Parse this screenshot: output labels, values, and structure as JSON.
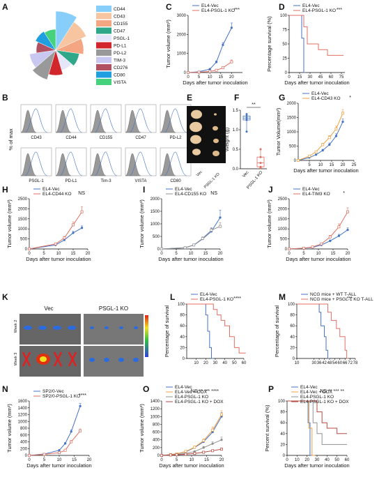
{
  "colors": {
    "blue": "#4472c4",
    "red": "#e06f63",
    "orange": "#f0a040",
    "gray": "#909090",
    "darkred": "#b8483f",
    "photo": "#e9e9e9"
  },
  "panels": {
    "A": {
      "label": "A",
      "legend": [
        "CD44",
        "CD43",
        "CD155",
        "CD47",
        "PSGL-1",
        "PD-L1",
        "PD-L2",
        "TIM-3",
        "CD276",
        "CD80",
        "VISTA"
      ],
      "colors": [
        "#87cefa",
        "#f7c59f",
        "#f4a582",
        "#2fa88a",
        "#e6e6fa",
        "#d1262c",
        "#999999",
        "#c8c8f0",
        "#b05060",
        "#1f9fdf",
        "#46d17d"
      ]
    },
    "B": {
      "label": "B",
      "ylabel": "% of max",
      "markers": [
        "CD43",
        "CD44",
        "CD155",
        "CD47",
        "PD-L2",
        "PSGL-1",
        "PD-L1",
        "Tim-3",
        "VISTA",
        "CD80"
      ]
    },
    "E": {
      "label": "E",
      "groups": [
        "Vec",
        "PSGL-1 KO"
      ]
    },
    "F": {
      "label": "F"
    },
    "K": {
      "label": "K",
      "groups": [
        "Vec",
        "PSGL-1 KO"
      ],
      "rows": [
        "Week 2",
        "Week 3"
      ]
    }
  },
  "chart_data": [
    {
      "panel": "C",
      "type": "line",
      "xlabel": "Days after tumor inoculation",
      "ylabel": "Tumor volume (mm³)",
      "xlim": [
        0,
        25
      ],
      "ylim": [
        0,
        3000
      ],
      "xticks": [
        0,
        5,
        10,
        15,
        20
      ],
      "yticks": [
        0,
        1000,
        2000,
        3000
      ],
      "sig": "***",
      "series": [
        {
          "name": "EL4-Vec",
          "color": "#4472c4",
          "x": [
            0,
            5,
            10,
            13,
            16,
            20
          ],
          "y": [
            0,
            40,
            180,
            550,
            1450,
            2350
          ],
          "err": [
            0,
            10,
            30,
            60,
            120,
            250
          ]
        },
        {
          "name": "EL4-PSGL-1 KO",
          "color": "#e06f63",
          "x": [
            0,
            5,
            10,
            13,
            16,
            20
          ],
          "y": [
            0,
            20,
            60,
            120,
            250,
            560
          ],
          "err": [
            0,
            5,
            10,
            20,
            40,
            100
          ]
        }
      ]
    },
    {
      "panel": "D",
      "type": "survival",
      "xlabel": "Days after tumor inoculation",
      "ylabel": "Percentage survival (%)",
      "xlim": [
        0,
        80
      ],
      "ylim": [
        0,
        100
      ],
      "xticks": [
        0,
        15,
        30,
        45,
        60,
        75
      ],
      "yticks": [
        0,
        25,
        50,
        75,
        100
      ],
      "sig": "***",
      "series": [
        {
          "name": "EL4-Vec",
          "color": "#4472c4",
          "x": [
            0,
            18,
            18,
            21,
            21,
            23
          ],
          "y": [
            100,
            100,
            60,
            60,
            0,
            0
          ]
        },
        {
          "name": "EL4-PSGL-1 KO",
          "color": "#e06f63",
          "x": [
            0,
            21,
            21,
            26,
            26,
            42,
            42,
            55,
            55,
            78
          ],
          "y": [
            100,
            100,
            80,
            80,
            50,
            50,
            40,
            40,
            30,
            30
          ]
        }
      ]
    },
    {
      "panel": "F",
      "type": "box",
      "xlabel": "",
      "ylabel": "Weight (g)",
      "ylim": [
        0,
        1.5
      ],
      "yticks": [
        0.0,
        0.5,
        1.0,
        1.5
      ],
      "categories": [
        "Vec",
        "PSGL-1 KO"
      ],
      "sig": "**",
      "series": [
        {
          "name": "Vec",
          "color": "#4472c4",
          "values": [
            1.3,
            1.35,
            1.4,
            1.25,
            0.95
          ]
        },
        {
          "name": "PSGL-1 KO",
          "color": "#e06f63",
          "values": [
            0.3,
            0.15,
            0.02,
            0.5,
            0.05
          ]
        }
      ]
    },
    {
      "panel": "G",
      "type": "line",
      "xlabel": "Days after tumor inoculation",
      "ylabel": "Tumor Volume(mm³)",
      "xlim": [
        0,
        25
      ],
      "ylim": [
        0,
        2000
      ],
      "xticks": [
        5,
        10,
        15,
        20,
        25
      ],
      "yticks": [
        0,
        500,
        1000,
        1500,
        2000
      ],
      "sig": "*",
      "series": [
        {
          "name": "EL4-Vec",
          "color": "#4472c4",
          "x": [
            0,
            5,
            8,
            11,
            14,
            17,
            20
          ],
          "y": [
            0,
            100,
            200,
            350,
            550,
            850,
            1350
          ],
          "err": [
            0,
            15,
            25,
            40,
            60,
            80,
            100
          ]
        },
        {
          "name": "EL4-CD43 KO",
          "color": "#f0a040",
          "x": [
            0,
            5,
            8,
            11,
            14,
            17,
            20
          ],
          "y": [
            0,
            150,
            300,
            550,
            800,
            1100,
            1650
          ],
          "err": [
            0,
            20,
            30,
            50,
            70,
            100,
            130
          ]
        }
      ]
    },
    {
      "panel": "H",
      "type": "line",
      "xlabel": "Days after tumor inoculation",
      "ylabel": "Tumor volume (mm³)",
      "xlim": [
        0,
        20
      ],
      "ylim": [
        0,
        2500
      ],
      "xticks": [
        0,
        5,
        10,
        15,
        20
      ],
      "yticks": [
        0,
        500,
        1000,
        1500,
        2000,
        2500
      ],
      "sig": "NS",
      "series": [
        {
          "name": "EL4-Vec",
          "color": "#4472c4",
          "x": [
            0,
            9,
            12,
            15,
            18
          ],
          "y": [
            0,
            200,
            450,
            800,
            1050
          ],
          "err": [
            0,
            30,
            50,
            80,
            100
          ]
        },
        {
          "name": "EL4-CD44 KO",
          "color": "#e06f63",
          "x": [
            0,
            9,
            12,
            15,
            18
          ],
          "y": [
            0,
            250,
            550,
            1200,
            1850
          ],
          "err": [
            0,
            40,
            70,
            150,
            250
          ]
        }
      ]
    },
    {
      "panel": "I",
      "type": "line",
      "xlabel": "Days after tumor inoculation",
      "ylabel": "Tumor volume (mm³)",
      "xlim": [
        0,
        20
      ],
      "ylim": [
        0,
        2000
      ],
      "xticks": [
        0,
        5,
        10,
        15,
        20
      ],
      "yticks": [
        0,
        500,
        1000,
        1500,
        2000
      ],
      "sig": "NS",
      "series": [
        {
          "name": "EL4-Vec",
          "color": "#4472c4",
          "x": [
            0,
            8,
            11,
            14,
            17,
            20
          ],
          "y": [
            0,
            50,
            150,
            400,
            700,
            1250
          ],
          "err": [
            0,
            10,
            30,
            60,
            120,
            300
          ]
        },
        {
          "name": "EL4-CD155 KO",
          "color": "#909090",
          "x": [
            0,
            8,
            11,
            14,
            17,
            20
          ],
          "y": [
            0,
            50,
            160,
            420,
            750,
            900
          ],
          "err": [
            0,
            10,
            30,
            60,
            100,
            150
          ]
        }
      ]
    },
    {
      "panel": "J",
      "type": "line",
      "xlabel": "Days after tumor inoculation",
      "ylabel": "Tumor volume (mm³)",
      "xlim": [
        0,
        20
      ],
      "ylim": [
        0,
        2500
      ],
      "xticks": [
        0,
        5,
        10,
        15,
        20
      ],
      "yticks": [
        0,
        500,
        1000,
        1500,
        2000,
        2500
      ],
      "sig": "*",
      "series": [
        {
          "name": "EL4-Vec",
          "color": "#4472c4",
          "x": [
            0,
            5,
            8,
            11,
            14,
            17,
            20
          ],
          "y": [
            0,
            40,
            80,
            200,
            400,
            650,
            950
          ],
          "err": [
            0,
            10,
            15,
            30,
            50,
            80,
            100
          ]
        },
        {
          "name": "EL4-TIM3 KO",
          "color": "#e06f63",
          "x": [
            0,
            5,
            8,
            11,
            14,
            17,
            20
          ],
          "y": [
            0,
            40,
            100,
            250,
            600,
            1100,
            1850
          ],
          "err": [
            0,
            10,
            15,
            40,
            80,
            150,
            200
          ]
        }
      ]
    },
    {
      "panel": "L",
      "type": "survival",
      "xlabel": "",
      "ylabel": "Percentage of survival",
      "xlim": [
        0,
        60
      ],
      "ylim": [
        0,
        100
      ],
      "xticks": [
        10,
        20,
        30,
        40,
        50,
        60
      ],
      "yticks": [
        0,
        20,
        40,
        60,
        80,
        100
      ],
      "sig": "****",
      "series": [
        {
          "name": "EL4-Vec",
          "color": "#4472c4",
          "x": [
            0,
            20,
            20,
            22,
            22,
            24,
            24,
            26,
            26,
            28
          ],
          "y": [
            100,
            100,
            80,
            80,
            50,
            50,
            20,
            20,
            0,
            0
          ]
        },
        {
          "name": "EL4-PSGL-1 KO",
          "color": "#e06f63",
          "x": [
            0,
            28,
            28,
            32,
            32,
            36,
            36,
            40,
            40,
            45,
            45,
            50,
            50,
            55,
            55,
            62
          ],
          "y": [
            100,
            100,
            90,
            90,
            80,
            80,
            70,
            70,
            60,
            60,
            40,
            40,
            20,
            20,
            10,
            10
          ]
        }
      ]
    },
    {
      "panel": "M",
      "type": "survival",
      "xlabel": "",
      "ylabel": "Percentage of survival",
      "xlim": [
        10,
        78
      ],
      "ylim": [
        0,
        100
      ],
      "xticks": [
        10,
        30,
        36,
        42,
        48,
        54,
        60,
        66,
        72,
        78
      ],
      "yticks": [
        0,
        20,
        40,
        60,
        80,
        100
      ],
      "sig": "***",
      "series": [
        {
          "name": "NCG mice + WT T-ALL",
          "color": "#4472c4",
          "x": [
            10,
            36,
            36,
            38,
            38,
            42,
            42,
            44,
            44,
            46,
            46,
            48
          ],
          "y": [
            100,
            100,
            85,
            85,
            60,
            60,
            40,
            40,
            15,
            15,
            0,
            0
          ]
        },
        {
          "name": "NCG mice + PSGL-1 KO T-ALL",
          "color": "#e06f63",
          "x": [
            10,
            46,
            46,
            50,
            50,
            56,
            56,
            60,
            60,
            66,
            66,
            68,
            68,
            70
          ],
          "y": [
            100,
            100,
            85,
            85,
            70,
            70,
            55,
            55,
            40,
            40,
            15,
            15,
            0,
            0
          ]
        }
      ]
    },
    {
      "panel": "N",
      "type": "line",
      "xlabel": "Days after tumor inoculation",
      "ylabel": "Tumor volume (mm³)",
      "xlim": [
        0,
        20
      ],
      "ylim": [
        0,
        1600
      ],
      "xticks": [
        0,
        5,
        10,
        15,
        20
      ],
      "yticks": [
        0,
        200,
        400,
        600,
        800,
        1000,
        1200,
        1400,
        1600
      ],
      "sig": "****",
      "series": [
        {
          "name": "SP2/0-Vec",
          "color": "#4472c4",
          "x": [
            0,
            5,
            10,
            12,
            14,
            17
          ],
          "y": [
            0,
            40,
            150,
            350,
            700,
            1450
          ],
          "err": [
            0,
            10,
            20,
            30,
            50,
            80
          ]
        },
        {
          "name": "SP2/0-PSGL-1 KO",
          "color": "#e06f63",
          "x": [
            0,
            5,
            10,
            12,
            14,
            17
          ],
          "y": [
            0,
            30,
            80,
            150,
            400,
            720
          ],
          "err": [
            0,
            5,
            15,
            20,
            40,
            60
          ]
        }
      ]
    },
    {
      "panel": "O",
      "type": "line",
      "xlabel": "Days after tumor inoculation",
      "ylabel": "Tumor volume (mm³)",
      "xlim": [
        0,
        20
      ],
      "ylim": [
        0,
        1400
      ],
      "xticks": [
        0,
        5,
        10,
        15,
        20
      ],
      "yticks": [
        0,
        200,
        400,
        600,
        800,
        1000,
        1200,
        1400
      ],
      "sig": [
        "NS",
        "**",
        "***",
        "****"
      ],
      "series": [
        {
          "name": "EL4-Vec",
          "color": "#4472c4",
          "x": [
            0,
            3,
            5,
            8,
            11,
            14,
            17,
            20
          ],
          "y": [
            0,
            20,
            40,
            90,
            200,
            350,
            600,
            1000
          ],
          "err": [
            0,
            5,
            8,
            15,
            30,
            50,
            80,
            100
          ]
        },
        {
          "name": "EL4-Vec + DOX",
          "color": "#f0a040",
          "x": [
            0,
            3,
            5,
            8,
            11,
            14,
            17,
            20
          ],
          "y": [
            0,
            20,
            40,
            100,
            210,
            380,
            650,
            1050
          ],
          "err": [
            0,
            5,
            8,
            15,
            30,
            50,
            80,
            100
          ]
        },
        {
          "name": "EL4-PSGL-1 KO",
          "color": "#909090",
          "x": [
            0,
            3,
            5,
            8,
            11,
            14,
            17,
            20
          ],
          "y": [
            0,
            15,
            25,
            50,
            100,
            200,
            300,
            400
          ],
          "err": [
            0,
            3,
            5,
            10,
            20,
            30,
            50,
            70
          ]
        },
        {
          "name": "EL4-PSGL-1 KO + DOX",
          "color": "#b8483f",
          "x": [
            0,
            3,
            5,
            8,
            11,
            14,
            17,
            20
          ],
          "y": [
            0,
            10,
            15,
            30,
            50,
            80,
            120,
            160
          ],
          "err": [
            0,
            2,
            3,
            5,
            10,
            15,
            20,
            30
          ]
        }
      ]
    },
    {
      "panel": "P",
      "type": "survival",
      "xlabel": "Days after tumor inoculation",
      "ylabel": "Percent survival (%)",
      "xlim": [
        0,
        60
      ],
      "ylim": [
        0,
        100
      ],
      "xticks": [
        0,
        10,
        20,
        30,
        40,
        50,
        60
      ],
      "yticks": [
        0,
        20,
        40,
        60,
        80,
        100
      ],
      "sig": [
        "NS",
        "**",
        "***",
        "**"
      ],
      "series": [
        {
          "name": "EL4-Vec",
          "color": "#4472c4",
          "x": [
            0,
            21,
            21,
            23,
            23,
            25
          ],
          "y": [
            100,
            100,
            60,
            60,
            0,
            0
          ]
        },
        {
          "name": "EL4-Vec + DOX",
          "color": "#f0a040",
          "x": [
            0,
            22,
            22,
            25,
            25,
            28
          ],
          "y": [
            100,
            100,
            50,
            50,
            0,
            0
          ]
        },
        {
          "name": "EL4-PSGL-1 KO",
          "color": "#909090",
          "x": [
            0,
            26,
            26,
            30,
            30,
            35,
            35,
            60
          ],
          "y": [
            100,
            100,
            60,
            60,
            40,
            40,
            20,
            20
          ]
        },
        {
          "name": "EL4-PSGL-1 KO + DOX",
          "color": "#b8483f",
          "x": [
            0,
            30,
            30,
            35,
            35,
            40,
            40,
            50,
            50,
            60
          ],
          "y": [
            100,
            100,
            80,
            80,
            60,
            60,
            50,
            50,
            40,
            40
          ]
        }
      ]
    }
  ]
}
